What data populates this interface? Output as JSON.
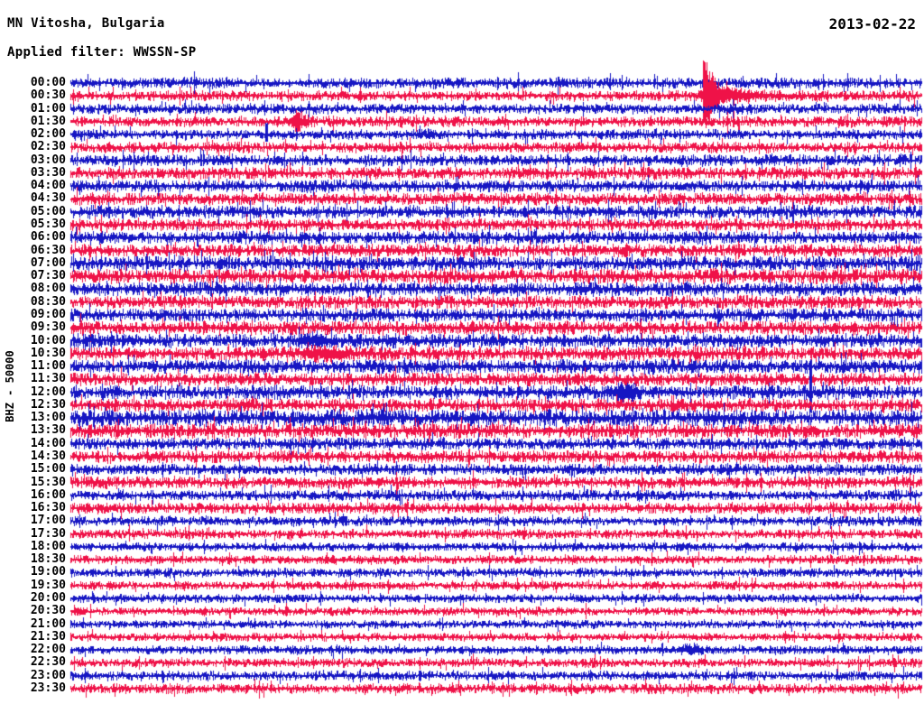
{
  "header": {
    "station_title": "MN Vitosha, Bulgaria",
    "filter_label": "Applied filter: WWSSN-SP",
    "date": "2013-02-22"
  },
  "y_axis_label": "BHZ - 50000",
  "colors": {
    "background": "#ffffff",
    "text": "#000000",
    "trace_blue": "#1616c3",
    "trace_red": "#ef1248"
  },
  "chart_data": {
    "type": "line",
    "subtype": "helicorder-day-plot",
    "title": "MN Vitosha, Bulgaria",
    "date": "2013-02-22",
    "filter": "WWSSN-SP",
    "channel_scale_label": "BHZ - 50000",
    "row_interval_minutes": 30,
    "trace_color_cycle": [
      "blue",
      "red"
    ],
    "rows": [
      {
        "time": "00:00",
        "color": "blue",
        "amp": 3.4,
        "events": []
      },
      {
        "time": "00:30",
        "color": "red",
        "amp": 3.2,
        "events": [
          {
            "type": "quake",
            "frac": 0.744,
            "amp": 40
          }
        ]
      },
      {
        "time": "01:00",
        "color": "blue",
        "amp": 3.2,
        "events": []
      },
      {
        "time": "01:30",
        "color": "red",
        "amp": 3.4,
        "events": [
          {
            "type": "burst",
            "frac": 0.267,
            "amp": 9,
            "width": 6
          }
        ]
      },
      {
        "time": "02:00",
        "color": "blue",
        "amp": 3.2,
        "events": [
          {
            "type": "spike",
            "frac": 0.23,
            "amp": 13,
            "width": 1
          }
        ]
      },
      {
        "time": "02:30",
        "color": "red",
        "amp": 3.4,
        "events": []
      },
      {
        "time": "03:00",
        "color": "blue",
        "amp": 3.6,
        "events": []
      },
      {
        "time": "03:30",
        "color": "red",
        "amp": 3.8,
        "events": []
      },
      {
        "time": "04:00",
        "color": "blue",
        "amp": 3.8,
        "events": []
      },
      {
        "time": "04:30",
        "color": "red",
        "amp": 3.8,
        "events": []
      },
      {
        "time": "05:00",
        "color": "blue",
        "amp": 4.0,
        "events": []
      },
      {
        "time": "05:30",
        "color": "red",
        "amp": 3.8,
        "events": []
      },
      {
        "time": "06:00",
        "color": "blue",
        "amp": 4.0,
        "events": []
      },
      {
        "time": "06:30",
        "color": "red",
        "amp": 4.0,
        "events": []
      },
      {
        "time": "07:00",
        "color": "blue",
        "amp": 4.6,
        "events": []
      },
      {
        "time": "07:30",
        "color": "red",
        "amp": 4.6,
        "events": []
      },
      {
        "time": "08:00",
        "color": "blue",
        "amp": 4.4,
        "events": []
      },
      {
        "time": "08:30",
        "color": "red",
        "amp": 4.2,
        "events": []
      },
      {
        "time": "09:00",
        "color": "blue",
        "amp": 4.2,
        "events": []
      },
      {
        "time": "09:30",
        "color": "red",
        "amp": 4.4,
        "events": []
      },
      {
        "time": "10:00",
        "color": "blue",
        "amp": 4.4,
        "events": [
          {
            "type": "burst",
            "frac": 0.29,
            "amp": 5,
            "width": 10
          }
        ]
      },
      {
        "time": "10:30",
        "color": "red",
        "amp": 4.4,
        "events": [
          {
            "type": "burst",
            "frac": 0.3,
            "amp": 5,
            "width": 18
          }
        ]
      },
      {
        "time": "11:00",
        "color": "blue",
        "amp": 4.4,
        "events": []
      },
      {
        "time": "11:30",
        "color": "red",
        "amp": 4.2,
        "events": []
      },
      {
        "time": "12:00",
        "color": "blue",
        "amp": 4.4,
        "events": [
          {
            "type": "burst",
            "frac": 0.648,
            "amp": 8,
            "width": 9
          },
          {
            "type": "spike",
            "frac": 0.869,
            "amp": 38,
            "width": 1
          }
        ]
      },
      {
        "time": "12:30",
        "color": "red",
        "amp": 4.2,
        "events": []
      },
      {
        "time": "13:00",
        "color": "blue",
        "amp": 5.4,
        "events": []
      },
      {
        "time": "13:30",
        "color": "red",
        "amp": 4.6,
        "events": []
      },
      {
        "time": "14:00",
        "color": "blue",
        "amp": 3.8,
        "events": []
      },
      {
        "time": "14:30",
        "color": "red",
        "amp": 3.8,
        "events": []
      },
      {
        "time": "15:00",
        "color": "blue",
        "amp": 3.6,
        "events": []
      },
      {
        "time": "15:30",
        "color": "red",
        "amp": 3.8,
        "events": []
      },
      {
        "time": "16:00",
        "color": "blue",
        "amp": 3.4,
        "events": []
      },
      {
        "time": "16:30",
        "color": "red",
        "amp": 3.6,
        "events": []
      },
      {
        "time": "17:00",
        "color": "blue",
        "amp": 3.0,
        "events": []
      },
      {
        "time": "17:30",
        "color": "red",
        "amp": 3.0,
        "events": []
      },
      {
        "time": "18:00",
        "color": "blue",
        "amp": 2.8,
        "events": []
      },
      {
        "time": "18:30",
        "color": "red",
        "amp": 2.8,
        "events": []
      },
      {
        "time": "19:00",
        "color": "blue",
        "amp": 2.8,
        "events": []
      },
      {
        "time": "19:30",
        "color": "red",
        "amp": 2.8,
        "events": []
      },
      {
        "time": "20:00",
        "color": "blue",
        "amp": 2.7,
        "events": []
      },
      {
        "time": "20:30",
        "color": "red",
        "amp": 2.7,
        "events": []
      },
      {
        "time": "21:00",
        "color": "blue",
        "amp": 2.6,
        "events": []
      },
      {
        "time": "21:30",
        "color": "red",
        "amp": 2.6,
        "events": []
      },
      {
        "time": "22:00",
        "color": "blue",
        "amp": 2.8,
        "events": [
          {
            "type": "burst",
            "frac": 0.73,
            "amp": 4,
            "width": 8
          }
        ]
      },
      {
        "time": "22:30",
        "color": "red",
        "amp": 2.8,
        "events": []
      },
      {
        "time": "23:00",
        "color": "blue",
        "amp": 3.0,
        "events": []
      },
      {
        "time": "23:30",
        "color": "red",
        "amp": 3.2,
        "events": []
      }
    ],
    "notable_events": [
      {
        "row": "00:30",
        "approx_fraction": 0.744,
        "description": "large earthquake: sharp peak with decaying coda"
      },
      {
        "row": "01:30",
        "approx_fraction": 0.267,
        "description": "small burst"
      },
      {
        "row": "02:00",
        "approx_fraction": 0.23,
        "description": "narrow spike"
      },
      {
        "row": "12:00",
        "approx_fraction": 0.648,
        "description": "short high-amplitude burst"
      },
      {
        "row": "12:00",
        "approx_fraction": 0.869,
        "description": "tall narrow spike crossing adjacent rows"
      }
    ]
  }
}
